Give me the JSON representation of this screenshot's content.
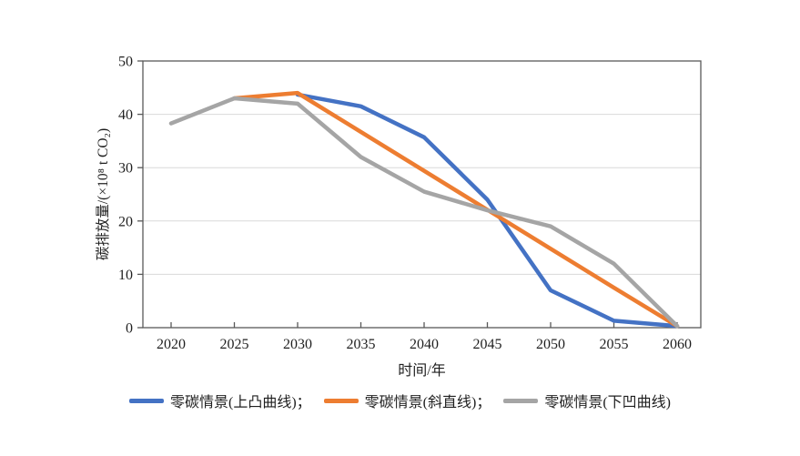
{
  "figure": {
    "background": "#ffffff",
    "text_color": "#1f1f1f",
    "axis_color": "#595959",
    "gridline_color": "#d9d9d9"
  },
  "chart_data": {
    "type": "line",
    "title": "",
    "xlabel": "时间/年",
    "ylabel": "碳排放量/(×10⁸ t CO₂)",
    "x_range": [
      2020,
      2060
    ],
    "y_range": [
      0,
      50
    ],
    "x_ticks": [
      2020,
      2025,
      2030,
      2035,
      2040,
      2045,
      2050,
      2055,
      2060
    ],
    "y_ticks": [
      0,
      10,
      20,
      30,
      40,
      50
    ],
    "grid": "horizontal",
    "legend_position": "bottom",
    "series": [
      {
        "id": "convex-up",
        "name": "零碳情景(上凸曲线)",
        "legend_label": "零碳情景(上凸曲线)；",
        "color": "#4472C4",
        "points": [
          [
            2030,
            43.7
          ],
          [
            2035,
            41.5
          ],
          [
            2040,
            35.7
          ],
          [
            2045,
            24.0
          ],
          [
            2050,
            7.0
          ],
          [
            2055,
            1.3
          ],
          [
            2060,
            0.3
          ]
        ]
      },
      {
        "id": "straight",
        "name": "零碳情景(斜直线)",
        "legend_label": "零碳情景(斜直线)；",
        "color": "#ED7D31",
        "points": [
          [
            2025,
            43.0
          ],
          [
            2030,
            44.0
          ],
          [
            2035,
            36.7
          ],
          [
            2040,
            29.4
          ],
          [
            2045,
            22.1
          ],
          [
            2050,
            14.8
          ],
          [
            2055,
            7.5
          ],
          [
            2060,
            0.3
          ]
        ]
      },
      {
        "id": "concave-down",
        "name": "零碳情景(下凹曲线)",
        "legend_label": "零碳情景(下凹曲线)",
        "color": "#A5A5A5",
        "points": [
          [
            2020,
            38.3
          ],
          [
            2025,
            43.0
          ],
          [
            2030,
            42.0
          ],
          [
            2035,
            32.0
          ],
          [
            2040,
            25.5
          ],
          [
            2045,
            22.0
          ],
          [
            2050,
            19.0
          ],
          [
            2055,
            12.0
          ],
          [
            2060,
            0.3
          ]
        ]
      }
    ]
  }
}
